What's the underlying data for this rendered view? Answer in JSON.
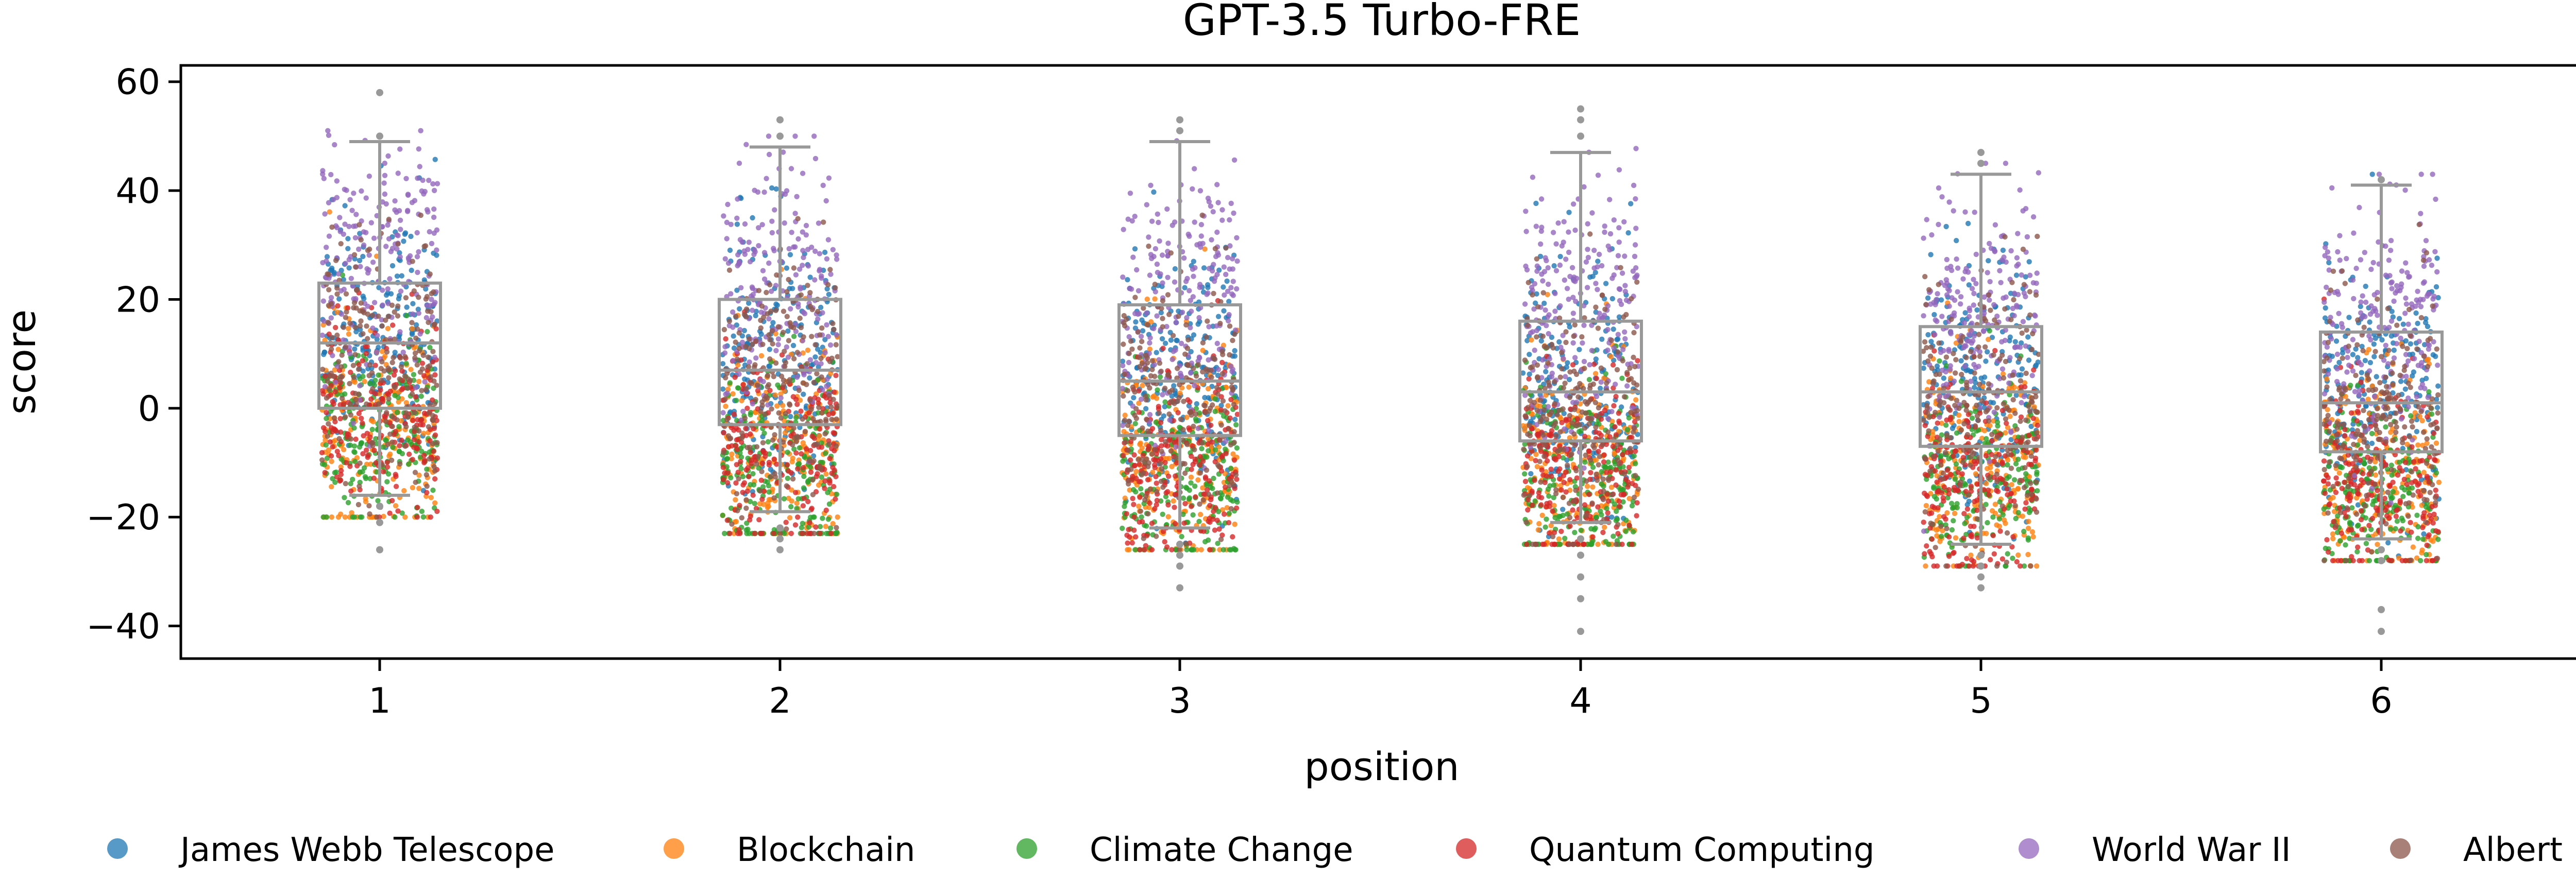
{
  "chart_data": {
    "type": "box-strip",
    "title": "GPT-3.5 Turbo-FRE",
    "xlabel": "position",
    "ylabel": "score",
    "categories": [
      "1",
      "2",
      "3",
      "4",
      "5",
      "6"
    ],
    "ylim": [
      -46,
      63
    ],
    "yticks": [
      60,
      40,
      20,
      0,
      -20,
      -40
    ],
    "ytick_labels": [
      "60",
      "40",
      "20",
      "0",
      "−20",
      "−40"
    ],
    "grid": false,
    "legend_position": "bottom",
    "box_color": "#999999",
    "boxes": [
      {
        "position": "1",
        "q1": 0,
        "median": 12,
        "q3": 23,
        "whisker_low": -16,
        "whisker_high": 49,
        "outliers": [
          -18,
          -21,
          -26,
          50,
          58
        ]
      },
      {
        "position": "2",
        "q1": -3,
        "median": 7,
        "q3": 20,
        "whisker_low": -19,
        "whisker_high": 48,
        "outliers": [
          -22,
          -24,
          -26,
          50,
          53
        ]
      },
      {
        "position": "3",
        "q1": -5,
        "median": 5,
        "q3": 19,
        "whisker_low": -22,
        "whisker_high": 49,
        "outliers": [
          -25,
          -27,
          -29,
          -33,
          51,
          53
        ]
      },
      {
        "position": "4",
        "q1": -6,
        "median": 3,
        "q3": 16,
        "whisker_low": -21,
        "whisker_high": 47,
        "outliers": [
          -24,
          -27,
          -31,
          -35,
          -41,
          50,
          53,
          55
        ]
      },
      {
        "position": "5",
        "q1": -7,
        "median": 3,
        "q3": 15,
        "whisker_low": -25,
        "whisker_high": 43,
        "outliers": [
          -27,
          -29,
          -31,
          -33,
          45,
          47
        ]
      },
      {
        "position": "6",
        "q1": -8,
        "median": 1,
        "q3": 14,
        "whisker_low": -24,
        "whisker_high": 41,
        "outliers": [
          -26,
          -28,
          -37,
          -41,
          42
        ]
      }
    ],
    "series": [
      {
        "name": "James Webb Telescope",
        "color": "#1f77b4",
        "center": 14,
        "spread": 12
      },
      {
        "name": "Blockchain",
        "color": "#ff7f0e",
        "center": -2,
        "spread": 10
      },
      {
        "name": "Climate Change",
        "color": "#2ca02c",
        "center": -5,
        "spread": 9
      },
      {
        "name": "Quantum Computing",
        "color": "#d62728",
        "center": -3,
        "spread": 9
      },
      {
        "name": "World War II",
        "color": "#9467bd",
        "center": 27,
        "spread": 12
      },
      {
        "name": "Albert Einstein",
        "color": "#8c564b",
        "center": 9,
        "spread": 12
      }
    ]
  }
}
